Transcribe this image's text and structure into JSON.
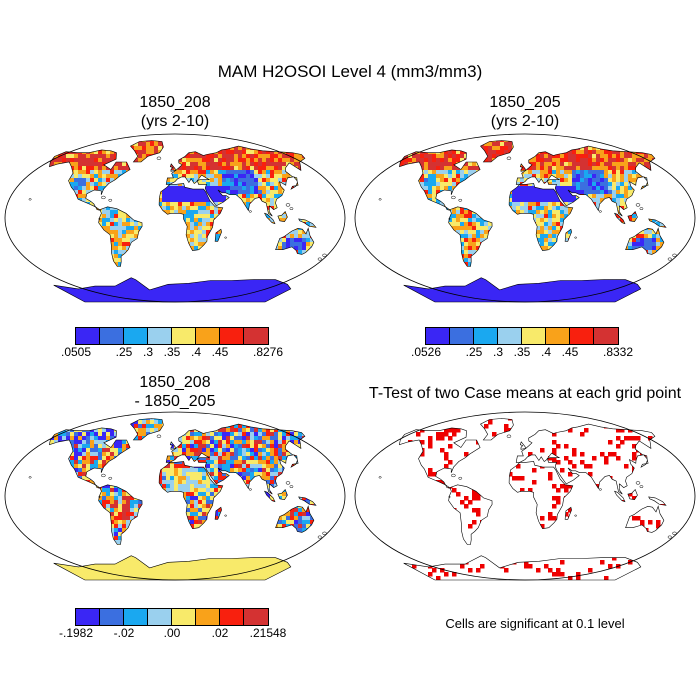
{
  "title": "MAM H2OSOI Level 4 (mm3/mm3)",
  "palette": [
    "#3a26f5",
    "#3b6fe0",
    "#1aa8f0",
    "#9ad0ee",
    "#f8ea6a",
    "#f9a21a",
    "#f8200e",
    "#d43232"
  ],
  "sig_color": "#ee0000",
  "chart_data": [
    {
      "type": "heatmap",
      "map_projection": "Robinson",
      "title": "1850_208\n(yrs 2-10)",
      "title_line1": "1850_208",
      "title_line2": "(yrs 2-10)",
      "colorbar": {
        "ticks": [
          ".0505",
          ".25",
          ".3",
          ".35",
          ".4",
          ".45",
          ".8276"
        ],
        "tick_positions": [
          0,
          2,
          3,
          4,
          5,
          6,
          8
        ],
        "range": [
          0.0505,
          0.8276
        ]
      }
    },
    {
      "type": "heatmap",
      "map_projection": "Robinson",
      "title": "1850_205\n(yrs 2-10)",
      "title_line1": "1850_205",
      "title_line2": "(yrs 2-10)",
      "colorbar": {
        "ticks": [
          ".0526",
          ".25",
          ".3",
          ".35",
          ".4",
          ".45",
          ".8332"
        ],
        "tick_positions": [
          0,
          2,
          3,
          4,
          5,
          6,
          8
        ],
        "range": [
          0.0526,
          0.8332
        ]
      }
    },
    {
      "type": "heatmap",
      "map_projection": "Robinson",
      "title": "1850_208\n- 1850_205",
      "title_line1": "1850_208",
      "title_line2": "- 1850_205",
      "colorbar": {
        "ticks": [
          "-.1982",
          "-.02",
          ".00",
          ".02",
          ".21548"
        ],
        "tick_positions": [
          0,
          2,
          4,
          6,
          8
        ],
        "range": [
          -0.1982,
          0.21548
        ]
      }
    },
    {
      "type": "heatmap",
      "map_projection": "Robinson",
      "title": "T-Test of two Case means at each grid point",
      "note": "Cells are significant at 0.1 level",
      "significance_level": 0.1
    }
  ]
}
